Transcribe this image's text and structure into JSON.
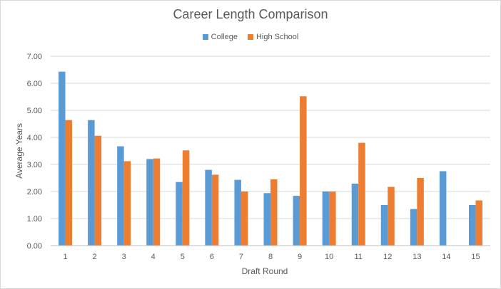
{
  "chart_data": {
    "type": "bar",
    "title": "Career Length Comparison",
    "xlabel": "Draft Round",
    "ylabel": "Average Years",
    "ylim": [
      0,
      7
    ],
    "yticks": [
      "0.00",
      "1.00",
      "2.00",
      "3.00",
      "4.00",
      "5.00",
      "6.00",
      "7.00"
    ],
    "categories": [
      "1",
      "2",
      "3",
      "4",
      "5",
      "6",
      "7",
      "8",
      "9",
      "10",
      "11",
      "12",
      "13",
      "14",
      "15"
    ],
    "series": [
      {
        "name": "College",
        "color": "#5b9bd5",
        "values": [
          6.43,
          4.64,
          3.67,
          3.2,
          2.35,
          2.8,
          2.43,
          1.94,
          1.84,
          2.0,
          2.29,
          1.5,
          1.35,
          2.75,
          1.5
        ]
      },
      {
        "name": "High School",
        "color": "#ed7d31",
        "values": [
          4.64,
          4.06,
          3.12,
          3.22,
          3.52,
          2.62,
          2.0,
          2.45,
          5.52,
          2.0,
          3.8,
          2.17,
          2.5,
          null,
          1.67
        ]
      }
    ],
    "grid": true,
    "legend": "top"
  }
}
